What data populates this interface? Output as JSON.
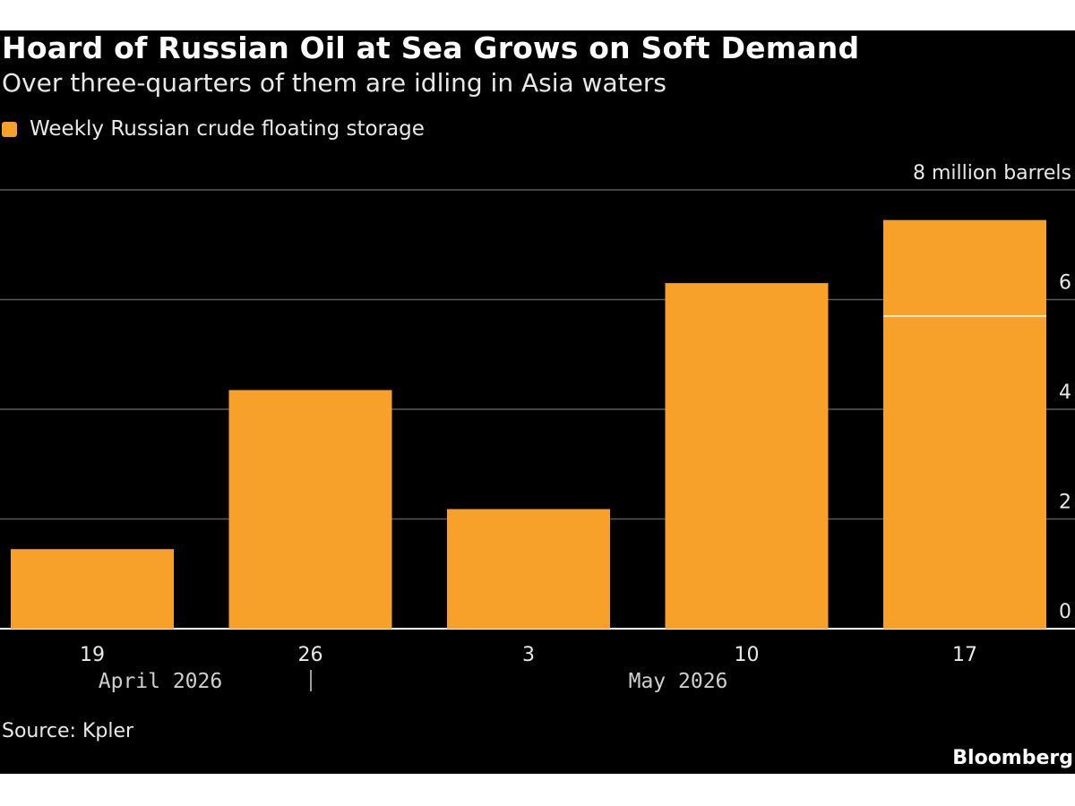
{
  "header": {
    "title": "Hoard of Russian Oil at Sea Grows on Soft Demand",
    "subtitle": "Over three-quarters of them are idling in Asia waters"
  },
  "legend": {
    "label": "Weekly Russian crude floating storage",
    "color": "#f7a12b"
  },
  "colors": {
    "background": "#000000",
    "bar": "#f7a12b",
    "grid": "#5a5a5a",
    "marker": "#ffffff"
  },
  "chart_data": {
    "type": "bar",
    "categories": [
      "19",
      "26",
      "3",
      "10",
      "17"
    ],
    "month_labels": [
      "April 2026",
      "May 2026"
    ],
    "series": [
      {
        "name": "Weekly Russian crude floating storage",
        "values": [
          1.45,
          4.35,
          2.18,
          6.3,
          7.45
        ]
      }
    ],
    "highlight_line_value": 5.7,
    "highlight_line_category": "17",
    "y_unit_label": "8 million barrels",
    "y_ticks": [
      0,
      2,
      4,
      6
    ],
    "ylim": [
      0,
      8
    ],
    "grid": true,
    "legend_position": "top-left"
  },
  "footer": {
    "source": "Source: Kpler",
    "brand": "Bloomberg"
  }
}
